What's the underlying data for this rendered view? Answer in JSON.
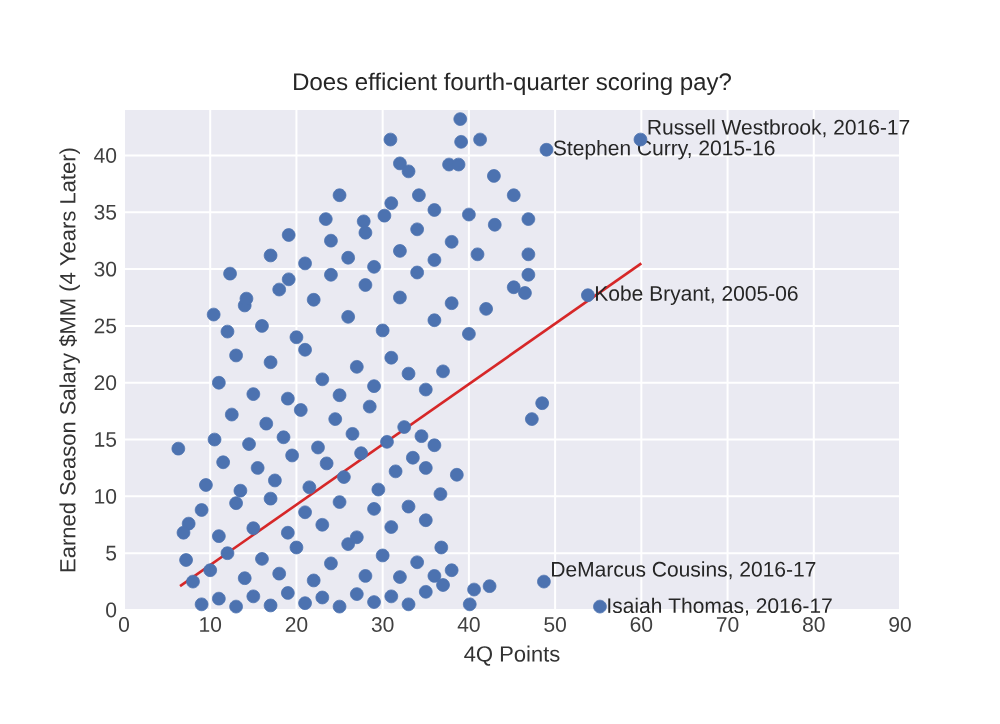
{
  "chart_data": {
    "type": "scatter",
    "title": "Does efficient fourth-quarter scoring pay?",
    "xlabel": "4Q Points",
    "ylabel": "Earned Season Salary $MM (4 Years Later)",
    "xlim": [
      0,
      90
    ],
    "ylim": [
      0,
      44
    ],
    "xticks": [
      0,
      10,
      20,
      30,
      40,
      50,
      60,
      70,
      80,
      90
    ],
    "yticks": [
      0,
      5,
      10,
      15,
      20,
      25,
      30,
      35,
      40
    ],
    "grid": true,
    "series": [
      {
        "type": "scatter",
        "marker": "circle",
        "color": "#4c72b0",
        "x": [
          9,
          11,
          13,
          15,
          17,
          19,
          21,
          23,
          25,
          27,
          29,
          31,
          33,
          35,
          37,
          8,
          10,
          12,
          14,
          16,
          18,
          20,
          22,
          24,
          26,
          28,
          30,
          32,
          34,
          36,
          7.5,
          9,
          11,
          13,
          15,
          17,
          19,
          21,
          23,
          25,
          27,
          29,
          31,
          33,
          35,
          9.5,
          11.5,
          13.5,
          15.5,
          17.5,
          19.5,
          21.5,
          23.5,
          25.5,
          27.5,
          29.5,
          31.5,
          33.5,
          35,
          10.5,
          12.5,
          14.5,
          16.5,
          18.5,
          20.5,
          22.5,
          24.5,
          26.5,
          28.5,
          30.5,
          32.5,
          34.5,
          36,
          11,
          13,
          15,
          17,
          19,
          21,
          23,
          25,
          27,
          29,
          31,
          33,
          35,
          37,
          12,
          14,
          16,
          18,
          20,
          22,
          24,
          26,
          28,
          30,
          32,
          34,
          36,
          38,
          40,
          42,
          17,
          21,
          24,
          26,
          28,
          29,
          32,
          34,
          36,
          38,
          40,
          41,
          43,
          25,
          31,
          36,
          39,
          30.9,
          39.1,
          41.3,
          32,
          33,
          37.7,
          38.8,
          42.9,
          34.2,
          27.8,
          30.2,
          23.4,
          19.1,
          12.3,
          19.1,
          14.2,
          10.4,
          6.3,
          6.9,
          7.2,
          38.6,
          36.7,
          36.8,
          38,
          40.1,
          40.6,
          42.4,
          45.2,
          46.9,
          46.9,
          46.9,
          45.2,
          46.5,
          47.3,
          48.5,
          59.9,
          49,
          53.8,
          48.7,
          55.2
        ],
        "values": [
          0.5,
          1,
          0.3,
          1.2,
          0.4,
          1.5,
          0.6,
          1.1,
          0.3,
          1.4,
          0.7,
          1.2,
          0.5,
          1.6,
          2.2,
          2.5,
          3.5,
          5,
          2.8,
          4.5,
          3.2,
          5.5,
          2.6,
          4.1,
          5.8,
          3,
          4.8,
          2.9,
          4.2,
          3,
          7.6,
          8.8,
          6.5,
          9.4,
          7.2,
          9.8,
          6.8,
          8.6,
          7.5,
          9.5,
          6.4,
          8.9,
          7.3,
          9.1,
          7.9,
          11,
          13,
          10.5,
          12.5,
          11.4,
          13.6,
          10.8,
          12.9,
          11.7,
          13.8,
          10.6,
          12.2,
          13.4,
          12.5,
          15,
          17.2,
          14.6,
          16.4,
          15.2,
          17.6,
          14.3,
          16.8,
          15.5,
          17.9,
          14.8,
          16.1,
          15.3,
          14.5,
          20,
          22.4,
          19,
          21.8,
          18.6,
          22.9,
          20.3,
          18.9,
          21.4,
          19.7,
          22.2,
          20.8,
          19.4,
          21,
          24.5,
          26.8,
          25,
          28.2,
          24,
          27.3,
          29.5,
          25.8,
          28.6,
          24.6,
          27.5,
          29.7,
          25.5,
          27,
          24.3,
          26.5,
          31.2,
          30.5,
          32.5,
          31,
          33.2,
          30.2,
          31.6,
          33.5,
          30.8,
          32.4,
          34.8,
          31.3,
          33.9,
          36.5,
          35.8,
          35.2,
          43.2,
          41.4,
          41.2,
          41.4,
          39.3,
          38.6,
          39.2,
          39.2,
          38.2,
          36.5,
          34.2,
          34.7,
          34.4,
          33,
          29.6,
          29.1,
          27.4,
          26,
          14.2,
          6.8,
          4.4,
          11.9,
          10.2,
          5.5,
          3.5,
          0.5,
          1.8,
          2.1,
          36.5,
          34.4,
          31.3,
          29.5,
          28.4,
          27.9,
          16.8,
          18.2,
          41.4,
          40.5,
          27.7,
          2.5,
          0.3
        ]
      },
      {
        "type": "line",
        "color": "#d62728",
        "x": [
          6.5,
          60
        ],
        "values": [
          2.1,
          30.5
        ]
      }
    ],
    "annotations": [
      {
        "text": "Russell Westbrook, 2016-17",
        "x": 59.9,
        "y": 41.4
      },
      {
        "text": "Stephen Curry, 2015-16",
        "x": 49,
        "y": 40.5
      },
      {
        "text": "Kobe Bryant, 2005-06",
        "x": 53.8,
        "y": 27.7
      },
      {
        "text": "DeMarcus Cousins, 2016-17",
        "x": 48.7,
        "y": 2.5
      },
      {
        "text": "Isaiah Thomas, 2016-17",
        "x": 55.2,
        "y": 0.3
      }
    ]
  }
}
